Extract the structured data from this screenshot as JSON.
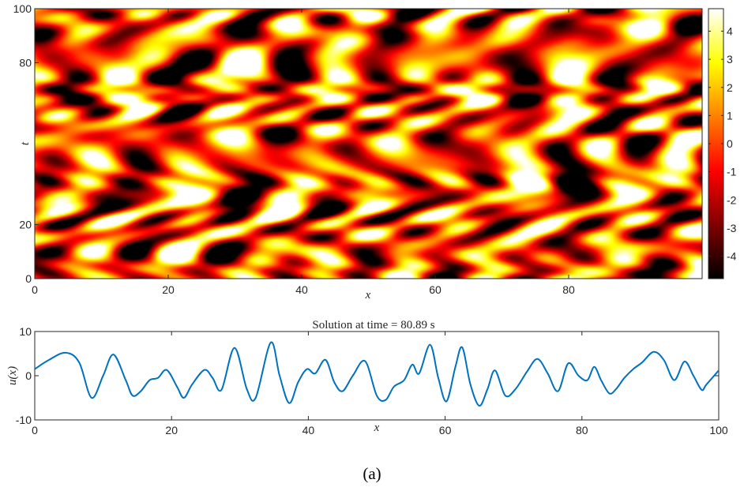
{
  "caption": "(a)",
  "chart_data": [
    {
      "type": "heatmap",
      "xlabel": "x",
      "ylabel": "t",
      "xlim": [
        0,
        100
      ],
      "ylim": [
        0,
        100
      ],
      "xticks": [
        "0",
        "20",
        "40",
        "60",
        "80"
      ],
      "yticks": [
        "0",
        "20",
        "80",
        "100"
      ],
      "colormap": "hot",
      "colorbar": {
        "range": [
          -4.8,
          4.8
        ],
        "ticks": [
          "4",
          "3",
          "2",
          "1",
          "0",
          "-1",
          "-2",
          "-3",
          "-4"
        ],
        "colors": [
          "#000000",
          "#800000",
          "#ff0000",
          "#ff8000",
          "#ffff00",
          "#ffffff"
        ]
      },
      "description_pattern": "diagonal oscillating wave bands drifting across x over time"
    },
    {
      "type": "line",
      "title": "Solution at time = 80.89 s",
      "xlabel": "x",
      "ylabel": "u(x)",
      "xlim": [
        0,
        100
      ],
      "ylim": [
        -10,
        10
      ],
      "xticks": [
        "0",
        "20",
        "40",
        "60",
        "80",
        "100"
      ],
      "yticks": [
        "10",
        "0",
        "-10"
      ],
      "color": "#0072bd",
      "series": [
        {
          "x": [
            0,
            2,
            4.5,
            6.5,
            8.3,
            10,
            11.5,
            13.3,
            14.3,
            15.5,
            16.8,
            18,
            19.3,
            20.8,
            21.8,
            23,
            24.8,
            26,
            27.3,
            29.2,
            31,
            32.3,
            34.5,
            35.8,
            37.2,
            38.5,
            39.8,
            41,
            42.5,
            43.8,
            45,
            46.5,
            48.3,
            50,
            51.3,
            52.5,
            54,
            55.2,
            56.2,
            57.8,
            59,
            60.2,
            61.5,
            62.5,
            63.7,
            65,
            66.2,
            67.3,
            68.8,
            70.3,
            72,
            73.5,
            75,
            76.5,
            78,
            79.5,
            80.8,
            81.8,
            82.8,
            84,
            85,
            86.2,
            87.5,
            88.8,
            90.5,
            92,
            93.5,
            95,
            96.3,
            97.5,
            98.2,
            100
          ],
          "values": [
            1.5,
            3.5,
            5.2,
            3.0,
            -5.0,
            0.0,
            4.8,
            -1.0,
            -4.5,
            -3.5,
            -1.0,
            -0.5,
            1.3,
            -2.5,
            -5.0,
            -2.0,
            1.3,
            -0.5,
            -3.2,
            6.3,
            -3.0,
            -5.0,
            7.5,
            0.0,
            -6.2,
            -1.5,
            1.5,
            0.5,
            3.6,
            -1.5,
            -3.5,
            0.0,
            3.3,
            -4.5,
            -5.5,
            -2.5,
            -1.0,
            2.5,
            0.5,
            7.0,
            -0.5,
            -5.8,
            2.0,
            6.4,
            -2.0,
            -6.8,
            -3.0,
            1.2,
            -4.5,
            -3.0,
            1.0,
            3.8,
            0.5,
            -3.5,
            2.8,
            0.0,
            -1.0,
            2.0,
            -1.0,
            -4.0,
            -3.0,
            -0.5,
            1.5,
            3.0,
            5.4,
            3.5,
            -1.0,
            3.2,
            0.0,
            -3.2,
            -2.0,
            1.2
          ]
        }
      ]
    }
  ]
}
